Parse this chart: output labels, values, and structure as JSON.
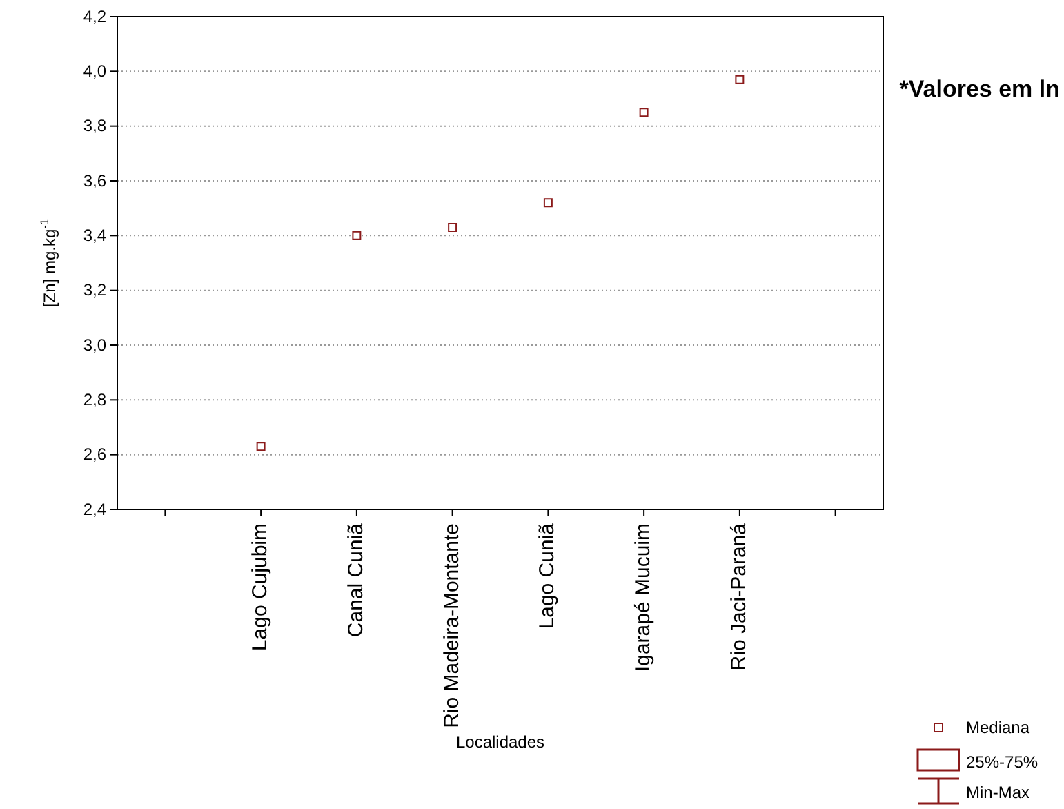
{
  "chart_data": {
    "type": "scatter",
    "xlabel": "Localidades",
    "ylabel": "[Zn] mg.kg$^{-1}$",
    "categories": [
      null,
      "Lago Cujubim",
      "Canal Cuniã",
      "Rio Madeira-Montante",
      "Lago Cuniã",
      "Igarapé Mucuim",
      "Rio Jaci-Paraná",
      null
    ],
    "series": [
      {
        "name": "Mediana",
        "color": "#8b1a1a",
        "values": [
          null,
          2.63,
          3.4,
          3.43,
          3.52,
          3.85,
          3.97,
          null
        ]
      }
    ],
    "marker": "square",
    "ylim": [
      2.4,
      4.2
    ],
    "yticks": [
      {
        "value": 2.4,
        "label": "2,4"
      },
      {
        "value": 2.6,
        "label": "2,6"
      },
      {
        "value": 2.8,
        "label": "2,8"
      },
      {
        "value": 3.0,
        "label": "3,0"
      },
      {
        "value": 3.2,
        "label": "3,2"
      },
      {
        "value": 3.4,
        "label": "3,4"
      },
      {
        "value": 3.6,
        "label": "3,6"
      },
      {
        "value": 3.8,
        "label": "3,8"
      },
      {
        "value": 4.0,
        "label": "4,0"
      },
      {
        "value": 4.2,
        "label": "4,2"
      }
    ],
    "grid": "y",
    "legend": "bottom right",
    "annotations": [
      "*Valores em ln",
      "25%-75%",
      "Min-Max"
    ]
  }
}
